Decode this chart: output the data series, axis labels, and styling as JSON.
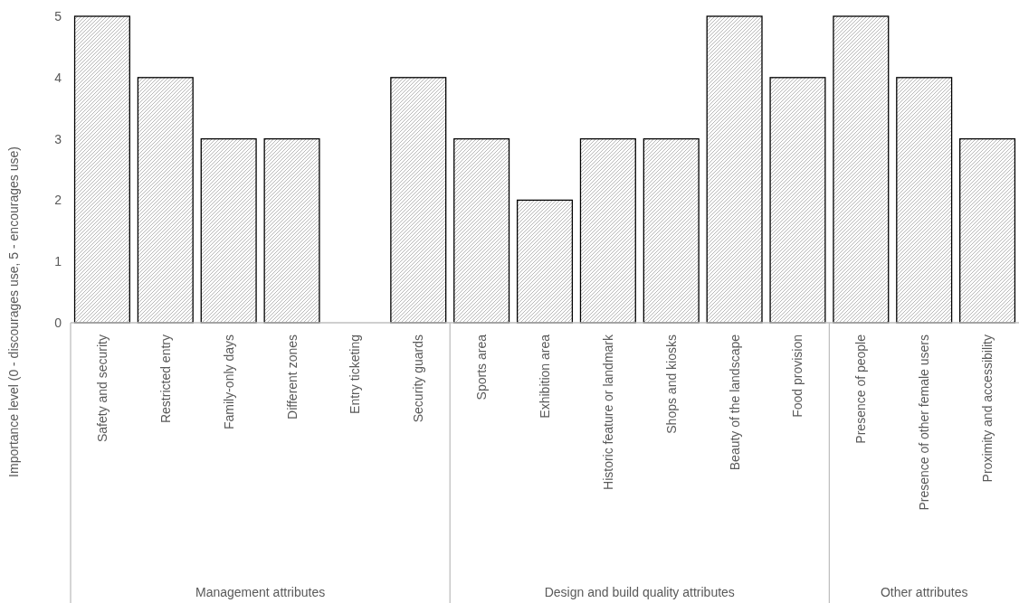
{
  "chart_data": {
    "type": "bar",
    "ylabel": "Importance level (0 - discourages use, 5 - encourages use)",
    "categories": [
      "Safety and security",
      "Restricted entry",
      "Family-only days",
      "Different zones",
      "Entry ticketing",
      "Security guards",
      "Sports area",
      "Exhibition area",
      "Historic feature or landmark",
      "Shops and kiosks",
      "Beauty of the landscape",
      "Food provision",
      "Presence of people",
      "Presence of other female users",
      "Proximity and accessibility"
    ],
    "values": [
      5,
      4,
      3,
      3,
      0,
      4,
      3,
      2,
      3,
      3,
      5,
      4,
      5,
      4,
      3
    ],
    "color": "#000000",
    "ylim": [
      0,
      5
    ],
    "yticks": [
      0,
      1,
      2,
      3,
      4,
      5
    ],
    "grid": false,
    "annotations": [
      "Management attributes",
      "Design and build quality attributes",
      "Other attributes"
    ]
  }
}
